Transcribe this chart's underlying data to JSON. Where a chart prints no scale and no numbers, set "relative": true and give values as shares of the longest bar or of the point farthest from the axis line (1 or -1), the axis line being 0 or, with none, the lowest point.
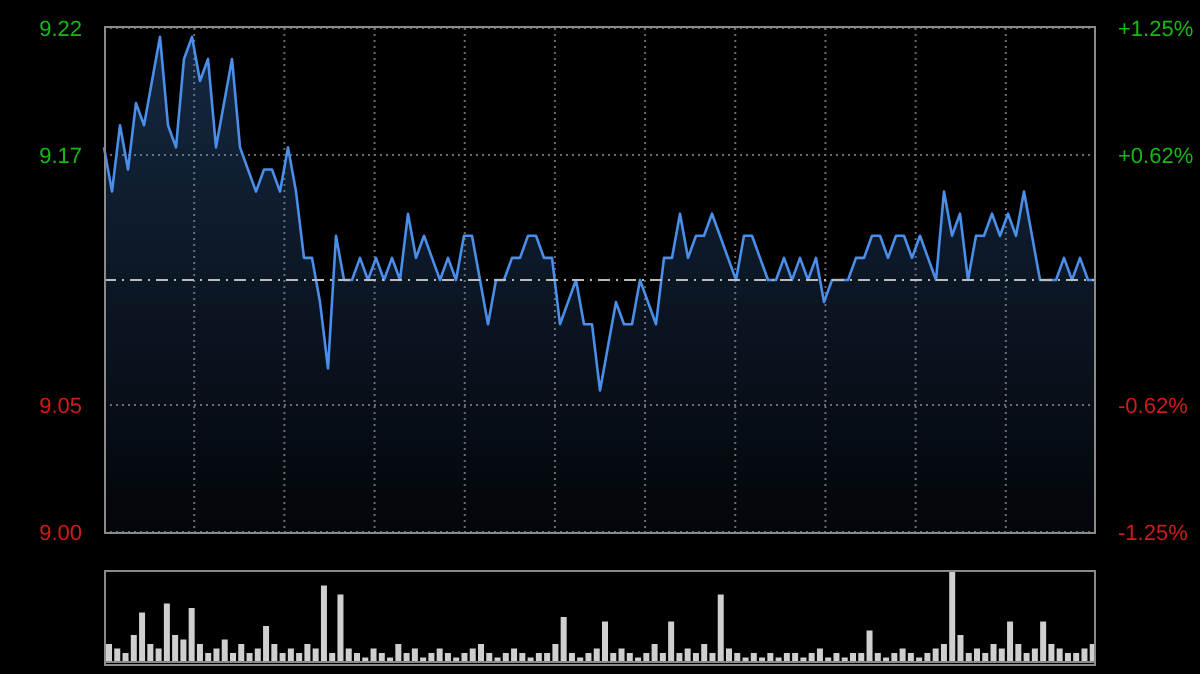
{
  "chart_data": [
    {
      "type": "area",
      "categories": [
        null,
        null,
        null,
        null,
        null,
        null,
        null,
        null,
        null,
        null,
        null,
        null,
        null,
        null,
        null,
        null,
        null,
        null,
        null,
        null,
        null,
        null,
        null,
        null,
        null,
        null,
        null,
        null,
        null,
        null,
        null,
        null,
        null,
        null,
        null,
        null,
        null,
        null,
        null,
        null,
        null,
        null,
        null,
        null,
        null,
        null,
        null,
        null,
        null,
        null,
        null,
        null,
        null,
        null,
        null,
        null,
        null,
        null,
        null,
        null,
        null,
        null,
        null,
        null,
        null,
        null,
        null,
        null,
        null,
        null,
        null,
        null,
        null,
        null,
        null,
        null,
        null,
        null,
        null,
        null,
        null,
        null,
        null,
        null,
        null,
        null,
        null,
        null,
        null,
        null,
        null,
        null,
        null,
        null,
        null,
        null,
        null,
        null,
        null,
        null,
        null,
        null,
        null,
        null,
        null,
        null,
        null,
        null,
        null,
        null,
        null,
        null,
        null,
        null,
        null,
        null,
        null,
        null,
        null,
        null,
        null,
        null,
        null,
        null,
        null
      ],
      "series": [
        {
          "color": "#4a8ee8",
          "values": [
            9.17,
            9.15,
            9.18,
            9.16,
            9.19,
            9.18,
            9.2,
            9.22,
            9.18,
            9.17,
            9.21,
            9.22,
            9.2,
            9.21,
            9.17,
            9.19,
            9.21,
            9.17,
            9.16,
            9.15,
            9.16,
            9.16,
            9.15,
            9.17,
            9.15,
            9.12,
            9.12,
            9.1,
            9.07,
            9.13,
            9.11,
            9.11,
            9.12,
            9.11,
            9.12,
            9.11,
            9.12,
            9.11,
            9.14,
            9.12,
            9.13,
            9.12,
            9.11,
            9.12,
            9.11,
            9.13,
            9.13,
            9.11,
            9.09,
            9.11,
            9.11,
            9.12,
            9.12,
            9.13,
            9.13,
            9.12,
            9.12,
            9.09,
            9.1,
            9.11,
            9.09,
            9.09,
            9.06,
            9.08,
            9.1,
            9.09,
            9.09,
            9.11,
            9.1,
            9.09,
            9.12,
            9.12,
            9.14,
            9.12,
            9.13,
            9.13,
            9.14,
            9.13,
            9.12,
            9.11,
            9.13,
            9.13,
            9.12,
            9.11,
            9.11,
            9.12,
            9.11,
            9.12,
            9.11,
            9.12,
            9.1,
            9.11,
            9.11,
            9.11,
            9.12,
            9.12,
            9.13,
            9.13,
            9.12,
            9.13,
            9.13,
            9.12,
            9.13,
            9.12,
            9.11,
            9.15,
            9.13,
            9.14,
            9.11,
            9.13,
            9.13,
            9.14,
            9.13,
            9.14,
            9.13,
            9.15,
            9.13,
            9.11,
            9.11,
            9.11,
            9.12,
            9.11,
            9.12,
            9.11,
            9.11
          ]
        }
      ],
      "ylim": [
        8.996,
        9.224
      ],
      "yticks": [
        {
          "value": 9.224,
          "label": "9.22"
        },
        {
          "value": 9.1665,
          "label": "9.17"
        },
        {
          "value": 9.0535,
          "label": "9.05"
        },
        {
          "value": 8.996,
          "label": "9.00"
        }
      ],
      "y2lim": [
        -1.25,
        1.25
      ],
      "y2ticks": [
        {
          "value": 1.25,
          "label": "+1.25%"
        },
        {
          "value": 0.62,
          "label": "+0.62%"
        },
        {
          "value": -0.62,
          "label": "-0.62%"
        },
        {
          "value": -1.25,
          "label": "-1.25%"
        }
      ],
      "ref_lines": [
        {
          "axis": "y",
          "value": 9.11,
          "color": "#bbbbbb",
          "line_style": "dashed"
        }
      ],
      "grid": true,
      "legend": false,
      "tick_labels": "y"
    },
    {
      "type": "bar",
      "relative": true,
      "legend": false,
      "categories": [
        null,
        null,
        null,
        null,
        null,
        null,
        null,
        null,
        null,
        null,
        null,
        null,
        null,
        null,
        null,
        null,
        null,
        null,
        null,
        null,
        null,
        null,
        null,
        null,
        null,
        null,
        null,
        null,
        null,
        null,
        null,
        null,
        null,
        null,
        null,
        null,
        null,
        null,
        null,
        null,
        null,
        null,
        null,
        null,
        null,
        null,
        null,
        null,
        null,
        null,
        null,
        null,
        null,
        null,
        null,
        null,
        null,
        null,
        null,
        null,
        null,
        null,
        null,
        null,
        null,
        null,
        null,
        null,
        null,
        null,
        null,
        null,
        null,
        null,
        null,
        null,
        null,
        null,
        null,
        null,
        null,
        null,
        null,
        null,
        null,
        null,
        null,
        null,
        null,
        null,
        null,
        null,
        null,
        null,
        null,
        null,
        null,
        null,
        null,
        null,
        null,
        null,
        null,
        null,
        null,
        null,
        null,
        null,
        null,
        null,
        null,
        null,
        null,
        null,
        null,
        null,
        null,
        null,
        null,
        null
      ],
      "series": [
        {
          "color": "#cfcfcf",
          "values": [
            0.2,
            0.15,
            0.1,
            0.3,
            0.55,
            0.2,
            0.15,
            0.65,
            0.3,
            0.25,
            0.6,
            0.2,
            0.1,
            0.15,
            0.25,
            0.1,
            0.2,
            0.1,
            0.15,
            0.4,
            0.2,
            0.1,
            0.15,
            0.1,
            0.2,
            0.15,
            0.85,
            0.1,
            0.75,
            0.15,
            0.1,
            0.05,
            0.15,
            0.1,
            0.05,
            0.2,
            0.1,
            0.15,
            0.05,
            0.1,
            0.15,
            0.1,
            0.05,
            0.1,
            0.15,
            0.2,
            0.1,
            0.05,
            0.1,
            0.15,
            0.1,
            0.05,
            0.1,
            0.1,
            0.2,
            0.5,
            0.1,
            0.05,
            0.1,
            0.15,
            0.45,
            0.1,
            0.15,
            0.1,
            0.05,
            0.1,
            0.2,
            0.1,
            0.45,
            0.1,
            0.15,
            0.1,
            0.2,
            0.1,
            0.75,
            0.15,
            0.1,
            0.05,
            0.1,
            0.05,
            0.1,
            0.05,
            0.1,
            0.1,
            0.05,
            0.1,
            0.15,
            0.05,
            0.1,
            0.05,
            0.1,
            0.1,
            0.35,
            0.1,
            0.05,
            0.1,
            0.15,
            0.1,
            0.05,
            0.1,
            0.15,
            0.2,
            1,
            0.3,
            0.1,
            0.15,
            0.1,
            0.2,
            0.15,
            0.45,
            0.2,
            0.1,
            0.15,
            0.45,
            0.2,
            0.15,
            0.1,
            0.1,
            0.15,
            0.2
          ]
        }
      ]
    }
  ]
}
